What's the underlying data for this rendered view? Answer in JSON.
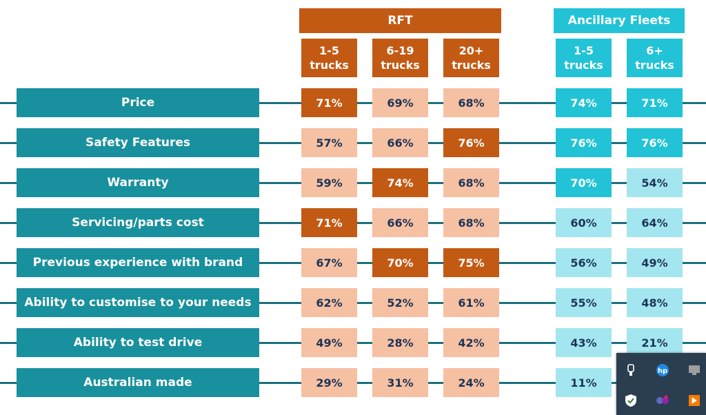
{
  "colors": {
    "rft_header": "#c35a14",
    "rft_high": "#c35a14",
    "rft_low": "#f6c0a3",
    "anc_header": "#22c3d6",
    "anc_high": "#22c3d6",
    "anc_low": "#a3e6ef",
    "row_label": "#19909d",
    "row_line": "#1c6f7c",
    "text_dark": "#1d3557",
    "tray_bg": "#2b3e50"
  },
  "chart_data": {
    "type": "table",
    "groups": [
      {
        "label": "RFT",
        "columns": [
          "1-5 trucks",
          "6-19 trucks",
          "20+ trucks"
        ]
      },
      {
        "label": "Ancillary Fleets",
        "columns": [
          "1-5 trucks",
          "6+ trucks"
        ]
      }
    ],
    "columns": [
      {
        "group": "RFT",
        "line1": "1-5",
        "line2": "trucks"
      },
      {
        "group": "RFT",
        "line1": "6-19",
        "line2": "trucks"
      },
      {
        "group": "RFT",
        "line1": "20+",
        "line2": "trucks"
      },
      {
        "group": "Ancillary Fleets",
        "line1": "1-5",
        "line2": "trucks"
      },
      {
        "group": "Ancillary Fleets",
        "line1": "6+",
        "line2": "trucks"
      }
    ],
    "rows": [
      {
        "label": "Price",
        "values": [
          "71%",
          "69%",
          "68%",
          "74%",
          "71%"
        ],
        "highlight": [
          true,
          false,
          false,
          true,
          true
        ]
      },
      {
        "label": "Safety Features",
        "values": [
          "57%",
          "66%",
          "76%",
          "76%",
          "76%"
        ],
        "highlight": [
          false,
          false,
          true,
          true,
          true
        ]
      },
      {
        "label": "Warranty",
        "values": [
          "59%",
          "74%",
          "68%",
          "70%",
          "54%"
        ],
        "highlight": [
          false,
          true,
          false,
          true,
          false
        ]
      },
      {
        "label": "Servicing/parts cost",
        "values": [
          "71%",
          "66%",
          "68%",
          "60%",
          "64%"
        ],
        "highlight": [
          true,
          false,
          false,
          false,
          false
        ]
      },
      {
        "label": "Previous experience with brand",
        "values": [
          "67%",
          "70%",
          "75%",
          "56%",
          "49%"
        ],
        "highlight": [
          false,
          true,
          true,
          false,
          false
        ]
      },
      {
        "label": "Ability to customise to your needs",
        "values": [
          "62%",
          "52%",
          "61%",
          "55%",
          "48%"
        ],
        "highlight": [
          false,
          false,
          false,
          false,
          false
        ]
      },
      {
        "label": "Ability to test drive",
        "values": [
          "49%",
          "28%",
          "42%",
          "43%",
          "21%"
        ],
        "highlight": [
          false,
          false,
          false,
          false,
          false
        ]
      },
      {
        "label": "Australian made",
        "values": [
          "29%",
          "31%",
          "24%",
          "11%",
          ""
        ],
        "highlight": [
          false,
          false,
          false,
          false,
          false
        ]
      }
    ]
  },
  "tray": {
    "icons": [
      "usb-icon",
      "hp-icon",
      "app-icon",
      "shield-icon",
      "teams-icon",
      "audio-icon"
    ]
  }
}
